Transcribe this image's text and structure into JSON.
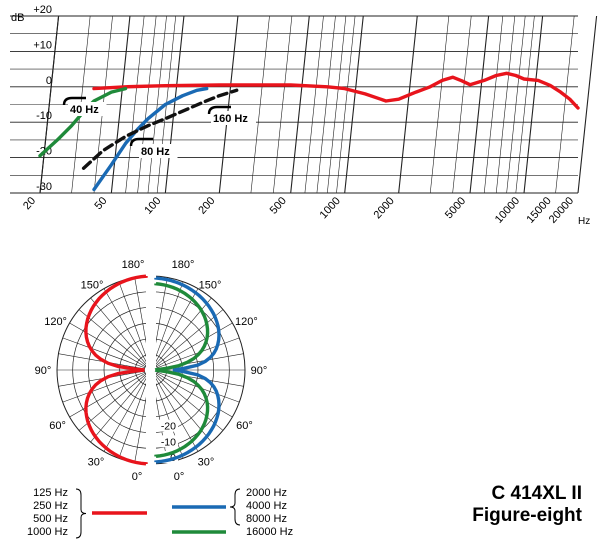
{
  "chart_data": [
    {
      "type": "line",
      "title": "",
      "ylabel": "dB",
      "xlabel": "Hz",
      "x_scale": "log",
      "xlim": [
        20,
        20000
      ],
      "ylim": [
        -30,
        20
      ],
      "y_ticks": [
        "+20",
        "+10",
        "0",
        "-10",
        "-20",
        "-30"
      ],
      "x_ticks": [
        "20",
        "50",
        "100",
        "200",
        "500",
        "1000",
        "2000",
        "5000",
        "10000",
        "15000",
        "20000"
      ],
      "colors": {
        "frequency_response": "#e8141c",
        "high_pass": [
          "#1f8a3a",
          "#1a6ab4",
          "#111111"
        ]
      },
      "annotations": [
        "40 Hz",
        "80 Hz",
        "160 Hz"
      ],
      "series": [
        {
          "points": [
            [
              40,
              -0.5
            ],
            [
              60,
              0
            ],
            [
              100,
              0.3
            ],
            [
              200,
              0.5
            ],
            [
              500,
              0.5
            ],
            [
              800,
              0
            ],
            [
              1000,
              -0.5
            ],
            [
              1300,
              -2
            ],
            [
              1700,
              -4
            ],
            [
              2000,
              -3.5
            ],
            [
              2500,
              -1.5
            ],
            [
              3000,
              0
            ],
            [
              3500,
              1.8
            ],
            [
              4000,
              2.7
            ],
            [
              4500,
              1.7
            ],
            [
              5000,
              0.6
            ],
            [
              6000,
              1.8
            ],
            [
              7000,
              3.2
            ],
            [
              8000,
              3.8
            ],
            [
              9000,
              3.2
            ],
            [
              10000,
              2.2
            ],
            [
              12000,
              1.8
            ],
            [
              14000,
              0.4
            ],
            [
              16000,
              -1.5
            ],
            [
              18000,
              -3.5
            ],
            [
              20000,
              -6
            ]
          ]
        },
        {
          "points": [
            [
              20,
              -19.5
            ],
            [
              25,
              -15
            ],
            [
              30,
              -11
            ],
            [
              35,
              -7
            ],
            [
              40,
              -4
            ],
            [
              50,
              -1.5
            ],
            [
              60,
              -0.5
            ]
          ]
        },
        {
          "points": [
            [
              40,
              -29
            ],
            [
              50,
              -22
            ],
            [
              60,
              -16
            ],
            [
              70,
              -12
            ],
            [
              80,
              -9
            ],
            [
              100,
              -5
            ],
            [
              125,
              -2.5
            ],
            [
              150,
              -1
            ],
            [
              170,
              -0.5
            ]
          ]
        },
        {
          "points": [
            [
              35,
              -23
            ],
            [
              45,
              -18
            ],
            [
              60,
              -14
            ],
            [
              80,
              -11
            ],
            [
              100,
              -9
            ],
            [
              130,
              -6.5
            ],
            [
              160,
              -4.5
            ],
            [
              200,
              -2.5
            ],
            [
              250,
              -1
            ]
          ]
        }
      ]
    },
    {
      "type": "polar",
      "r_labels": [
        "0",
        "-10",
        "-20"
      ],
      "angle_labels_left": [
        "180°",
        "150°",
        "120°",
        "90°",
        "60°",
        "30°",
        "0°"
      ],
      "angle_labels_right": [
        "180°",
        "150°",
        "120°",
        "90°",
        "60°",
        "30°",
        "0°"
      ],
      "colors": {
        "low": "#e8141c",
        "mid": "#1a6ab4",
        "high": "#1f8a3a"
      }
    }
  ],
  "legend": {
    "left": {
      "items": [
        "125 Hz",
        "250 Hz",
        "500 Hz",
        "1000 Hz"
      ],
      "color": "#e8141c"
    },
    "right": [
      {
        "items": [
          "2000 Hz",
          "4000 Hz",
          "8000 Hz"
        ],
        "color": "#1a6ab4"
      },
      {
        "items": [
          "16000 Hz"
        ],
        "color": "#1f8a3a"
      }
    ]
  },
  "product": {
    "model": "C 414XL II",
    "pattern": "Figure-eight"
  }
}
